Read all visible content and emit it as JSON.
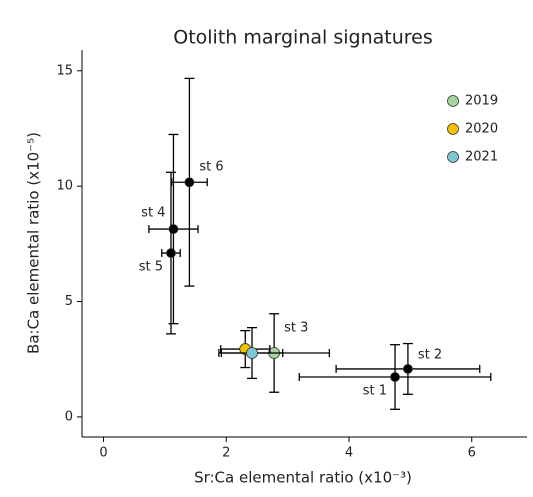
{
  "chart_data": {
    "type": "scatter",
    "title": "Otolith marginal signatures",
    "xlabel": "Sr:Ca elemental ratio (x10⁻³)",
    "ylabel": "Ba:Ca elemental ratio (x10⁻⁵)",
    "xlim": [
      -0.35,
      6.9
    ],
    "ylim": [
      -0.87,
      15.9
    ],
    "xticks": [
      0,
      2,
      4,
      6
    ],
    "yticks": [
      0,
      5,
      10,
      15
    ],
    "series": [
      {
        "color": "#000000",
        "labels": [
          "st 1",
          "st 2",
          "st 4",
          "st 5",
          "st 6"
        ],
        "x": [
          4.75,
          4.96,
          1.14,
          1.1,
          1.4
        ],
        "y": [
          1.73,
          2.08,
          8.14,
          7.1,
          10.17
        ],
        "xerr": [
          1.56,
          1.17,
          0.4,
          0.15,
          0.29
        ],
        "yerr": [
          1.4,
          1.1,
          4.1,
          3.5,
          4.5
        ]
      },
      {
        "name": "2019",
        "color": "#a6d69e",
        "labels": [
          "st 3"
        ],
        "x": [
          2.78
        ],
        "y": [
          2.77
        ],
        "xerr": [
          0.9
        ],
        "yerr": [
          1.7
        ]
      },
      {
        "name": "2020",
        "color": "#f2c200",
        "x": [
          2.31
        ],
        "y": [
          2.94
        ],
        "xerr": [
          0.4
        ],
        "yerr": [
          0.8
        ]
      },
      {
        "name": "2021",
        "color": "#7cc9d3",
        "x": [
          2.42
        ],
        "y": [
          2.77
        ],
        "xerr": [
          0.5
        ],
        "yerr": [
          1.1
        ]
      }
    ]
  }
}
